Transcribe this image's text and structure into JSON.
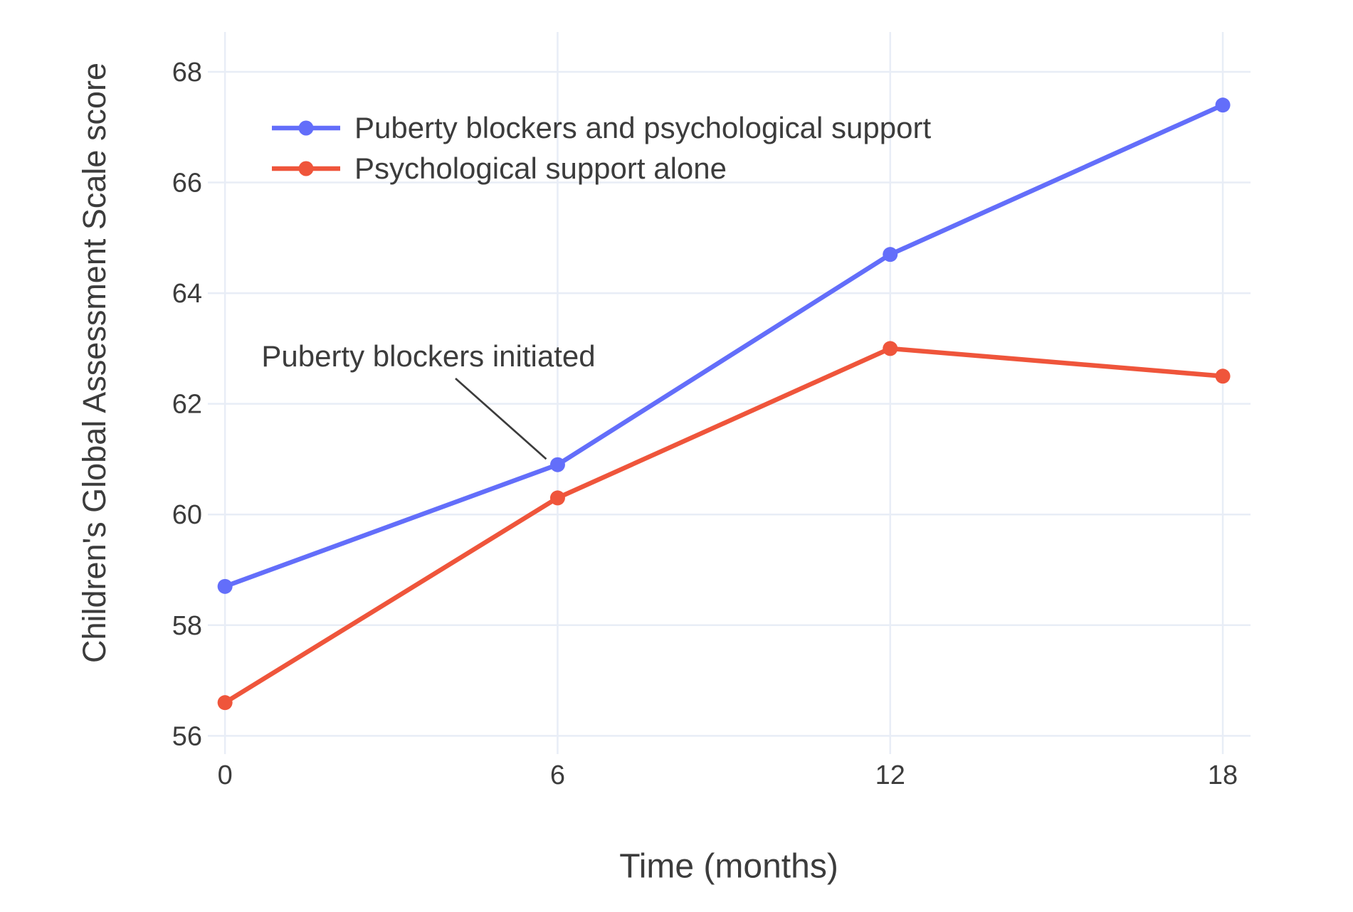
{
  "chart_data": {
    "type": "line",
    "title": "",
    "xlabel": "Time (months)",
    "ylabel": "Children's Global Assessment Scale score",
    "x": [
      0,
      6,
      12,
      18
    ],
    "x_tick_labels": [
      "0",
      "6",
      "12",
      "18"
    ],
    "y_ticks": [
      56,
      58,
      60,
      62,
      64,
      66,
      68
    ],
    "xlim": [
      -0.31,
      18.5
    ],
    "ylim": [
      55.67,
      68.72
    ],
    "grid": true,
    "legend_position": "top-left-inside",
    "series": [
      {
        "name": "Puberty blockers and psychological support",
        "color": "#636EFA",
        "values": [
          58.7,
          60.9,
          64.7,
          67.4
        ]
      },
      {
        "name": "Psychological support alone",
        "color": "#EF553B",
        "values": [
          56.6,
          60.3,
          63.0,
          62.5
        ]
      }
    ],
    "annotation": {
      "text": "Puberty blockers initiated",
      "x": 6,
      "y": 60.9
    }
  },
  "colors": {
    "grid": "#E8EDF6",
    "text": "#3C3C3C",
    "background": "#FFFFFF"
  }
}
